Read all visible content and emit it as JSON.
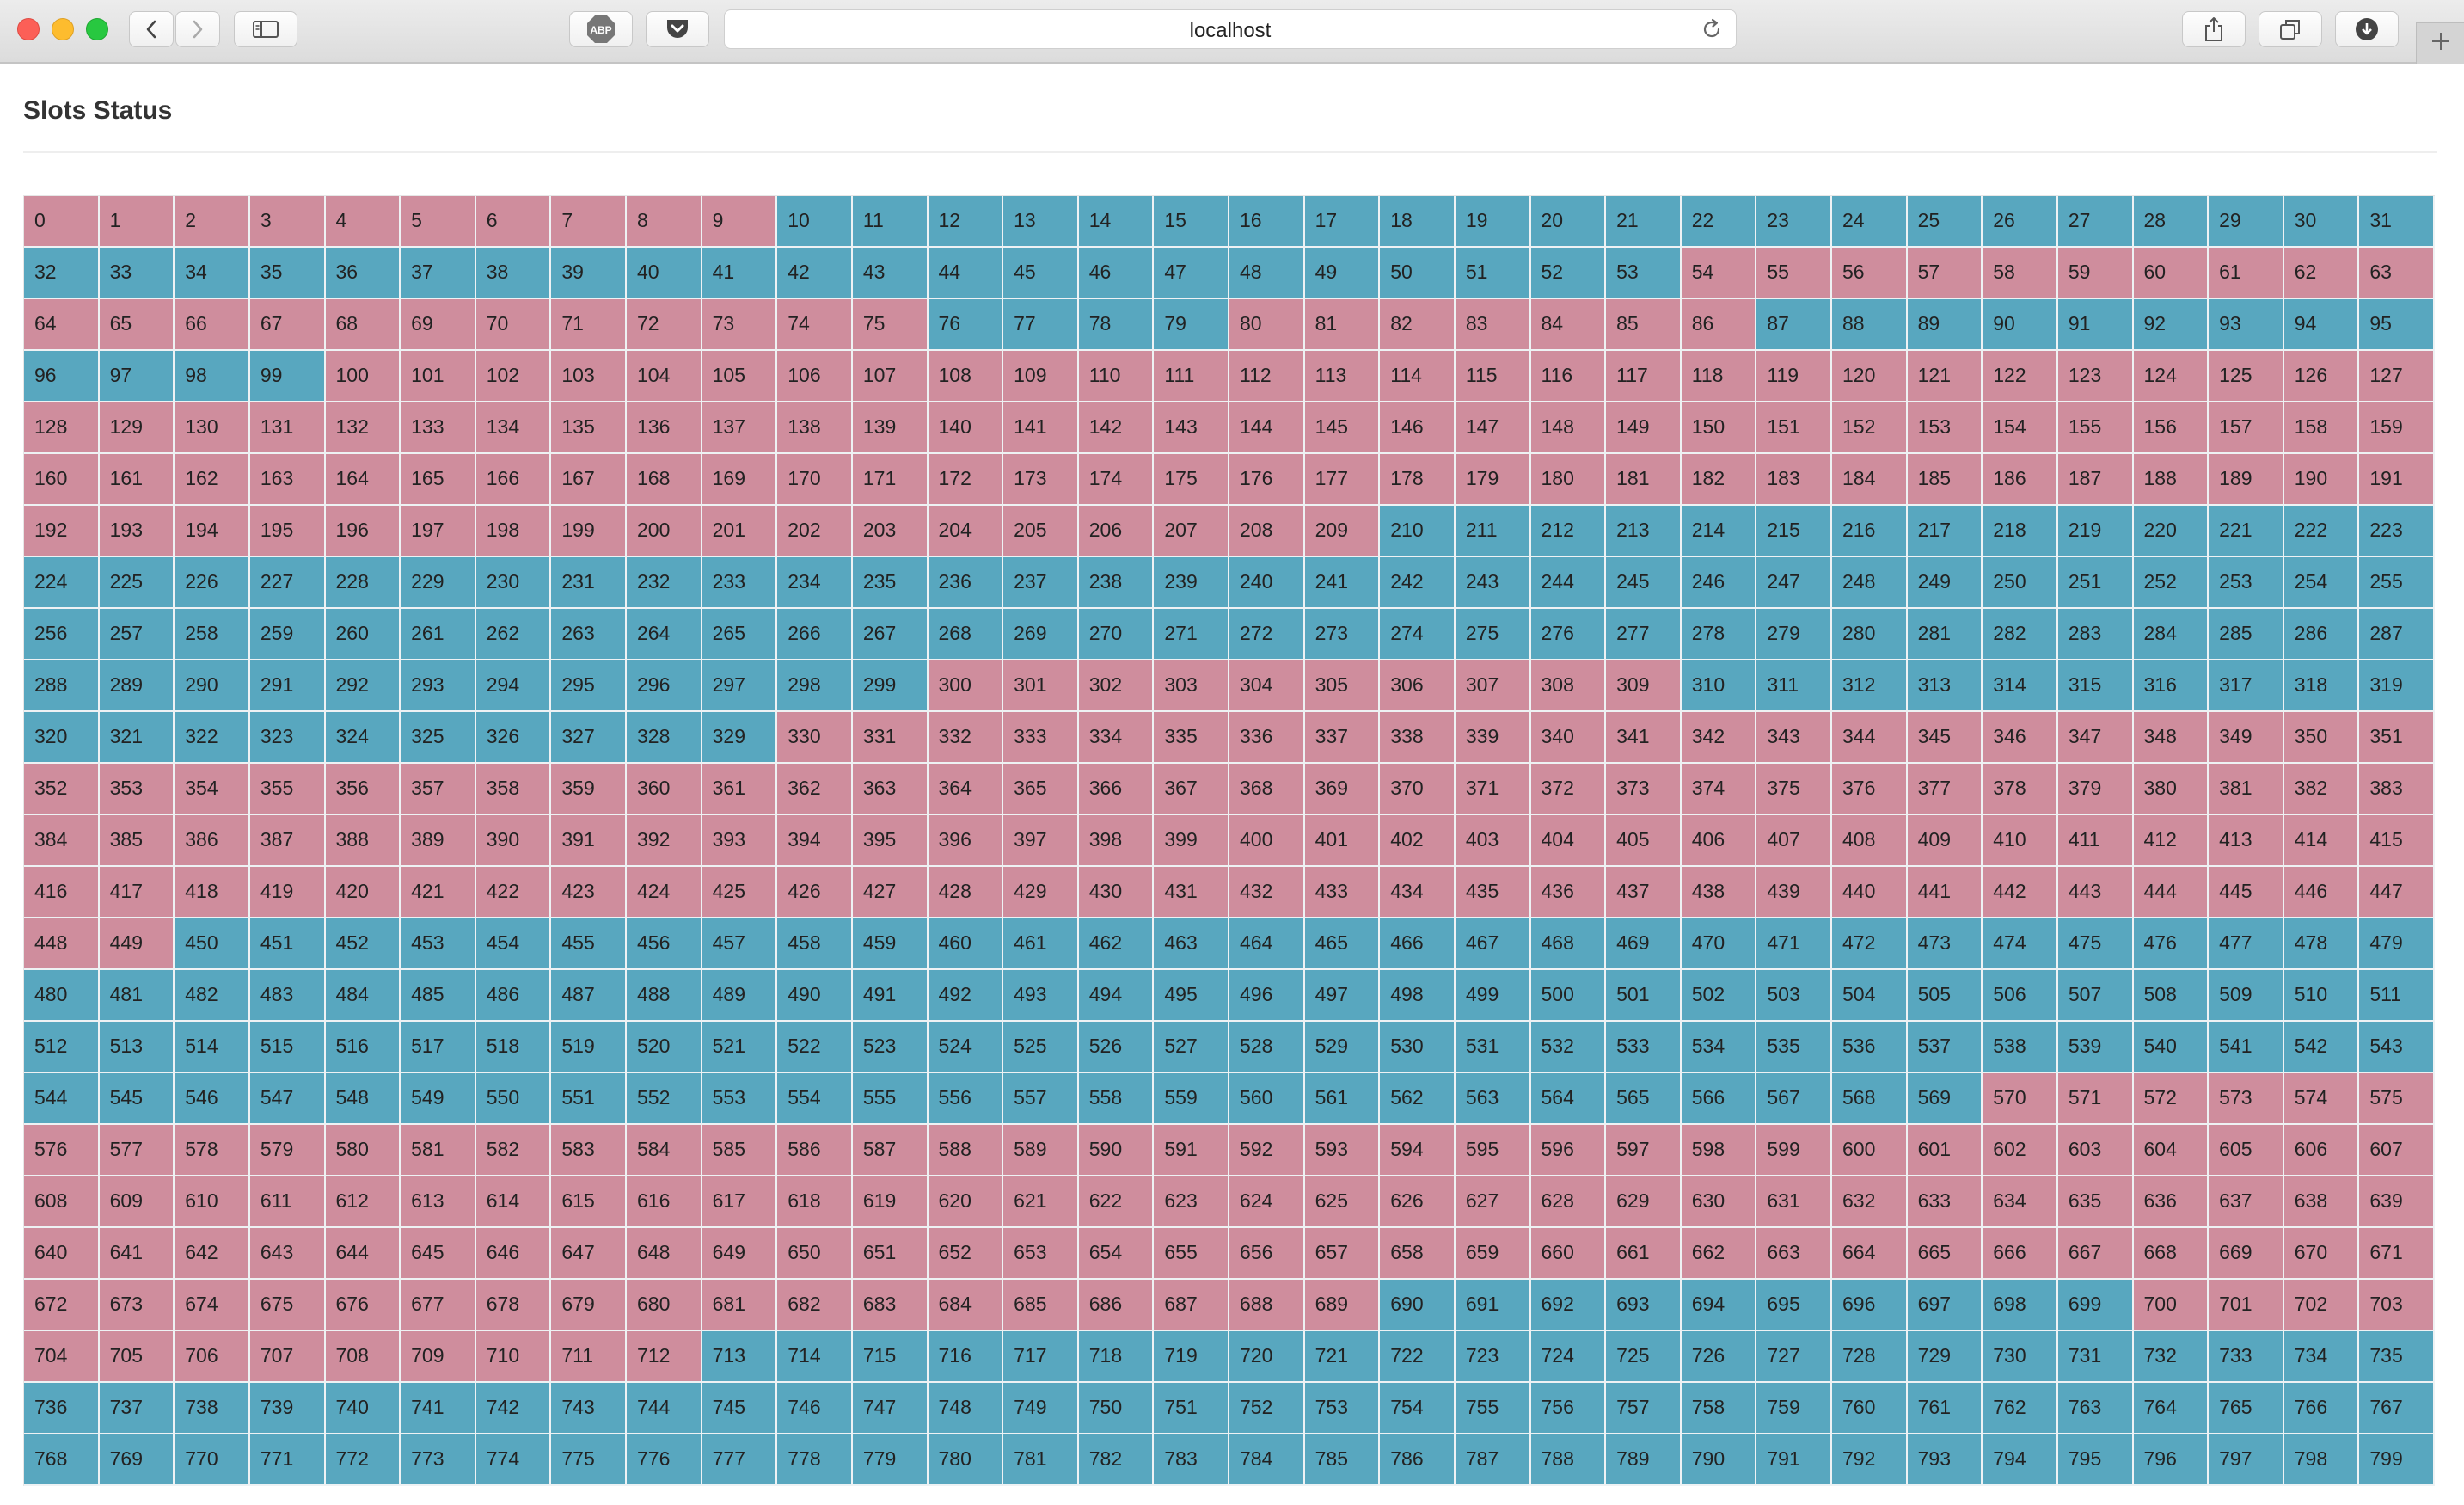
{
  "browser": {
    "url": "localhost",
    "icons": {
      "back": "chevron-left-icon",
      "forward": "chevron-right-icon",
      "sidebar": "sidebar-icon",
      "adblock": "adblock-icon",
      "pocket": "pocket-icon",
      "reload": "reload-icon",
      "share": "share-icon",
      "tabs": "tabs-icon",
      "downloads": "download-icon",
      "new_tab": "plus-icon"
    },
    "adblock_label": "ABP"
  },
  "page": {
    "title": "Slots Status"
  },
  "colors": {
    "slot_free": "#58a7bf",
    "slot_used": "#cf8d9d"
  },
  "slots": {
    "columns": 32,
    "visible_count": 800,
    "ranges": [
      {
        "from": 0,
        "to": 9,
        "status": "used"
      },
      {
        "from": 10,
        "to": 53,
        "status": "free"
      },
      {
        "from": 54,
        "to": 75,
        "status": "used"
      },
      {
        "from": 76,
        "to": 79,
        "status": "free"
      },
      {
        "from": 80,
        "to": 86,
        "status": "used"
      },
      {
        "from": 87,
        "to": 99,
        "status": "free"
      },
      {
        "from": 100,
        "to": 209,
        "status": "used"
      },
      {
        "from": 210,
        "to": 299,
        "status": "free"
      },
      {
        "from": 300,
        "to": 309,
        "status": "used"
      },
      {
        "from": 310,
        "to": 329,
        "status": "free"
      },
      {
        "from": 330,
        "to": 449,
        "status": "used"
      },
      {
        "from": 450,
        "to": 569,
        "status": "free"
      },
      {
        "from": 570,
        "to": 689,
        "status": "used"
      },
      {
        "from": 690,
        "to": 699,
        "status": "free"
      },
      {
        "from": 700,
        "to": 712,
        "status": "used"
      },
      {
        "from": 713,
        "to": 799,
        "status": "free"
      }
    ]
  }
}
